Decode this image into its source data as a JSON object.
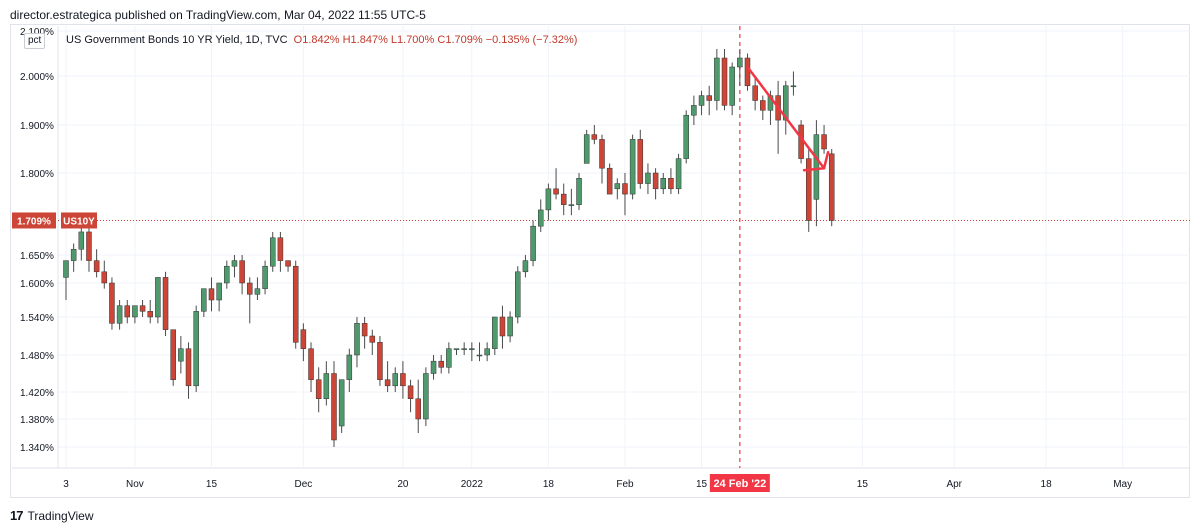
{
  "header": {
    "publish_line": "director.estrategica published on TradingView.com, Mar 04, 2022 11:55 UTC-5"
  },
  "chart_toolbar": {
    "scale_button": "pct"
  },
  "legend": {
    "symbol": "US Government Bonds 10 YR Yield, 1D, TVC",
    "ohlc": "O1.842%  H1.847%  L1.700%  C1.709%  −0.135% (−7.32%)"
  },
  "footer": {
    "brand_mark": "17",
    "brand_name": "TradingView"
  },
  "colors": {
    "up": "#4f9a6d",
    "down": "#cc4536",
    "wick": "#4a4a4a",
    "accent_red": "#f23645",
    "grid": "#f0f3fa",
    "price_line": "#cc4536"
  },
  "chart_data": {
    "type": "candlestick",
    "symbol": "US10Y",
    "last_price_label": "1.709%",
    "ylim": [
      1.3,
      2.1
    ],
    "yticks": [
      "2.100%",
      "2.000%",
      "1.900%",
      "1.800%",
      "1.650%",
      "1.600%",
      "1.540%",
      "1.480%",
      "1.420%",
      "1.380%",
      "1.340%"
    ],
    "ytick_values": [
      2.1,
      2.0,
      1.9,
      1.8,
      1.65,
      1.6,
      1.54,
      1.48,
      1.42,
      1.38,
      1.34
    ],
    "xticks": [
      {
        "label": "3",
        "index": 0
      },
      {
        "label": "Nov",
        "index": 9
      },
      {
        "label": "15",
        "index": 19
      },
      {
        "label": "Dec",
        "index": 31
      },
      {
        "label": "20",
        "index": 44
      },
      {
        "label": "2022",
        "index": 53
      },
      {
        "label": "18",
        "index": 63
      },
      {
        "label": "Feb",
        "index": 73
      },
      {
        "label": "15",
        "index": 83
      },
      {
        "label": "15",
        "index": 104
      },
      {
        "label": "Apr",
        "index": 116
      },
      {
        "label": "18",
        "index": 128
      },
      {
        "label": "May",
        "index": 138
      }
    ],
    "x_domain": [
      0,
      140
    ],
    "highlight_date": {
      "label": "24 Feb '22",
      "index": 88
    },
    "annotation": {
      "type": "arrow",
      "direction": "down-right",
      "from": {
        "index": 89,
        "value": 2.02
      },
      "to": {
        "index": 99,
        "value": 1.81
      }
    },
    "candles": [
      {
        "o": 1.61,
        "h": 1.64,
        "l": 1.57,
        "c": 1.64
      },
      {
        "o": 1.64,
        "h": 1.67,
        "l": 1.62,
        "c": 1.66
      },
      {
        "o": 1.66,
        "h": 1.7,
        "l": 1.64,
        "c": 1.69
      },
      {
        "o": 1.69,
        "h": 1.71,
        "l": 1.62,
        "c": 1.64
      },
      {
        "o": 1.64,
        "h": 1.66,
        "l": 1.61,
        "c": 1.62
      },
      {
        "o": 1.62,
        "h": 1.64,
        "l": 1.59,
        "c": 1.6
      },
      {
        "o": 1.6,
        "h": 1.61,
        "l": 1.52,
        "c": 1.53
      },
      {
        "o": 1.53,
        "h": 1.57,
        "l": 1.52,
        "c": 1.56
      },
      {
        "o": 1.56,
        "h": 1.57,
        "l": 1.53,
        "c": 1.54
      },
      {
        "o": 1.54,
        "h": 1.56,
        "l": 1.53,
        "c": 1.56
      },
      {
        "o": 1.56,
        "h": 1.57,
        "l": 1.54,
        "c": 1.55
      },
      {
        "o": 1.55,
        "h": 1.57,
        "l": 1.53,
        "c": 1.54
      },
      {
        "o": 1.54,
        "h": 1.61,
        "l": 1.53,
        "c": 1.61
      },
      {
        "o": 1.61,
        "h": 1.62,
        "l": 1.51,
        "c": 1.52
      },
      {
        "o": 1.52,
        "h": 1.52,
        "l": 1.43,
        "c": 1.44
      },
      {
        "o": 1.47,
        "h": 1.51,
        "l": 1.45,
        "c": 1.49
      },
      {
        "o": 1.49,
        "h": 1.5,
        "l": 1.41,
        "c": 1.43
      },
      {
        "o": 1.43,
        "h": 1.56,
        "l": 1.42,
        "c": 1.55
      },
      {
        "o": 1.55,
        "h": 1.59,
        "l": 1.54,
        "c": 1.59
      },
      {
        "o": 1.59,
        "h": 1.61,
        "l": 1.55,
        "c": 1.57
      },
      {
        "o": 1.57,
        "h": 1.6,
        "l": 1.55,
        "c": 1.6
      },
      {
        "o": 1.6,
        "h": 1.64,
        "l": 1.59,
        "c": 1.63
      },
      {
        "o": 1.63,
        "h": 1.65,
        "l": 1.61,
        "c": 1.64
      },
      {
        "o": 1.64,
        "h": 1.65,
        "l": 1.58,
        "c": 1.6
      },
      {
        "o": 1.6,
        "h": 1.61,
        "l": 1.53,
        "c": 1.58
      },
      {
        "o": 1.58,
        "h": 1.61,
        "l": 1.57,
        "c": 1.59
      },
      {
        "o": 1.59,
        "h": 1.64,
        "l": 1.58,
        "c": 1.63
      },
      {
        "o": 1.63,
        "h": 1.69,
        "l": 1.62,
        "c": 1.68
      },
      {
        "o": 1.68,
        "h": 1.69,
        "l": 1.62,
        "c": 1.64
      },
      {
        "o": 1.64,
        "h": 1.64,
        "l": 1.62,
        "c": 1.63
      },
      {
        "o": 1.63,
        "h": 1.64,
        "l": 1.49,
        "c": 1.5
      },
      {
        "o": 1.52,
        "h": 1.53,
        "l": 1.47,
        "c": 1.49
      },
      {
        "o": 1.49,
        "h": 1.5,
        "l": 1.42,
        "c": 1.44
      },
      {
        "o": 1.44,
        "h": 1.46,
        "l": 1.39,
        "c": 1.41
      },
      {
        "o": 1.41,
        "h": 1.47,
        "l": 1.4,
        "c": 1.45
      },
      {
        "o": 1.45,
        "h": 1.47,
        "l": 1.34,
        "c": 1.35
      },
      {
        "o": 1.37,
        "h": 1.44,
        "l": 1.36,
        "c": 1.44
      },
      {
        "o": 1.44,
        "h": 1.49,
        "l": 1.42,
        "c": 1.48
      },
      {
        "o": 1.48,
        "h": 1.54,
        "l": 1.46,
        "c": 1.53
      },
      {
        "o": 1.53,
        "h": 1.54,
        "l": 1.49,
        "c": 1.51
      },
      {
        "o": 1.51,
        "h": 1.52,
        "l": 1.48,
        "c": 1.5
      },
      {
        "o": 1.5,
        "h": 1.51,
        "l": 1.43,
        "c": 1.44
      },
      {
        "o": 1.44,
        "h": 1.47,
        "l": 1.42,
        "c": 1.43
      },
      {
        "o": 1.43,
        "h": 1.46,
        "l": 1.42,
        "c": 1.45
      },
      {
        "o": 1.45,
        "h": 1.47,
        "l": 1.41,
        "c": 1.43
      },
      {
        "o": 1.43,
        "h": 1.44,
        "l": 1.39,
        "c": 1.41
      },
      {
        "o": 1.41,
        "h": 1.44,
        "l": 1.36,
        "c": 1.38
      },
      {
        "o": 1.38,
        "h": 1.46,
        "l": 1.37,
        "c": 1.45
      },
      {
        "o": 1.45,
        "h": 1.48,
        "l": 1.44,
        "c": 1.47
      },
      {
        "o": 1.47,
        "h": 1.48,
        "l": 1.45,
        "c": 1.46
      },
      {
        "o": 1.46,
        "h": 1.5,
        "l": 1.45,
        "c": 1.49
      },
      {
        "o": 1.49,
        "h": 1.49,
        "l": 1.48,
        "c": 1.49
      },
      {
        "o": 1.49,
        "h": 1.5,
        "l": 1.48,
        "c": 1.49
      },
      {
        "o": 1.49,
        "h": 1.5,
        "l": 1.47,
        "c": 1.49
      },
      {
        "o": 1.48,
        "h": 1.5,
        "l": 1.47,
        "c": 1.48
      },
      {
        "o": 1.48,
        "h": 1.5,
        "l": 1.47,
        "c": 1.49
      },
      {
        "o": 1.49,
        "h": 1.54,
        "l": 1.48,
        "c": 1.54
      },
      {
        "o": 1.54,
        "h": 1.56,
        "l": 1.49,
        "c": 1.51
      },
      {
        "o": 1.51,
        "h": 1.55,
        "l": 1.5,
        "c": 1.54
      },
      {
        "o": 1.54,
        "h": 1.63,
        "l": 1.53,
        "c": 1.62
      },
      {
        "o": 1.62,
        "h": 1.65,
        "l": 1.61,
        "c": 1.64
      },
      {
        "o": 1.64,
        "h": 1.71,
        "l": 1.63,
        "c": 1.7
      },
      {
        "o": 1.7,
        "h": 1.75,
        "l": 1.69,
        "c": 1.73
      },
      {
        "o": 1.73,
        "h": 1.78,
        "l": 1.71,
        "c": 1.77
      },
      {
        "o": 1.77,
        "h": 1.81,
        "l": 1.75,
        "c": 1.76
      },
      {
        "o": 1.76,
        "h": 1.78,
        "l": 1.72,
        "c": 1.74
      },
      {
        "o": 1.74,
        "h": 1.77,
        "l": 1.72,
        "c": 1.74
      },
      {
        "o": 1.74,
        "h": 1.8,
        "l": 1.73,
        "c": 1.79
      },
      {
        "o": 1.82,
        "h": 1.89,
        "l": 1.82,
        "c": 1.88
      },
      {
        "o": 1.88,
        "h": 1.9,
        "l": 1.86,
        "c": 1.87
      },
      {
        "o": 1.87,
        "h": 1.88,
        "l": 1.78,
        "c": 1.81
      },
      {
        "o": 1.81,
        "h": 1.82,
        "l": 1.76,
        "c": 1.76
      },
      {
        "o": 1.77,
        "h": 1.79,
        "l": 1.75,
        "c": 1.78
      },
      {
        "o": 1.78,
        "h": 1.8,
        "l": 1.72,
        "c": 1.76
      },
      {
        "o": 1.76,
        "h": 1.88,
        "l": 1.75,
        "c": 1.87
      },
      {
        "o": 1.87,
        "h": 1.89,
        "l": 1.77,
        "c": 1.78
      },
      {
        "o": 1.78,
        "h": 1.82,
        "l": 1.76,
        "c": 1.8
      },
      {
        "o": 1.8,
        "h": 1.81,
        "l": 1.75,
        "c": 1.77
      },
      {
        "o": 1.77,
        "h": 1.8,
        "l": 1.76,
        "c": 1.79
      },
      {
        "o": 1.79,
        "h": 1.81,
        "l": 1.76,
        "c": 1.77
      },
      {
        "o": 1.77,
        "h": 1.84,
        "l": 1.76,
        "c": 1.83
      },
      {
        "o": 1.83,
        "h": 1.93,
        "l": 1.82,
        "c": 1.92
      },
      {
        "o": 1.92,
        "h": 1.96,
        "l": 1.9,
        "c": 1.94
      },
      {
        "o": 1.94,
        "h": 1.97,
        "l": 1.92,
        "c": 1.96
      },
      {
        "o": 1.96,
        "h": 1.98,
        "l": 1.92,
        "c": 1.95
      },
      {
        "o": 1.95,
        "h": 2.06,
        "l": 1.93,
        "c": 2.04
      },
      {
        "o": 2.04,
        "h": 2.06,
        "l": 1.93,
        "c": 1.94
      },
      {
        "o": 1.94,
        "h": 2.03,
        "l": 1.92,
        "c": 2.02
      },
      {
        "o": 2.02,
        "h": 2.06,
        "l": 1.98,
        "c": 2.04
      }
    ],
    "candles_after_marker": [
      {
        "o": 2.04,
        "h": 2.05,
        "l": 1.97,
        "c": 1.98
      },
      {
        "o": 1.98,
        "h": 2.0,
        "l": 1.93,
        "c": 1.95
      },
      {
        "o": 1.95,
        "h": 1.96,
        "l": 1.91,
        "c": 1.93
      },
      {
        "o": 1.93,
        "h": 1.97,
        "l": 1.9,
        "c": 1.96
      },
      {
        "o": 1.96,
        "h": 1.99,
        "l": 1.84,
        "c": 1.91
      },
      {
        "o": 1.91,
        "h": 1.99,
        "l": 1.88,
        "c": 1.98
      },
      {
        "o": 1.98,
        "h": 2.01,
        "l": 1.96,
        "c": 1.98
      },
      {
        "o": 1.9,
        "h": 1.91,
        "l": 1.82,
        "c": 1.83
      },
      {
        "o": 1.83,
        "h": 1.85,
        "l": 1.69,
        "c": 1.71
      },
      {
        "o": 1.75,
        "h": 1.91,
        "l": 1.7,
        "c": 1.88
      },
      {
        "o": 1.88,
        "h": 1.9,
        "l": 1.84,
        "c": 1.85
      },
      {
        "o": 1.84,
        "h": 1.85,
        "l": 1.7,
        "c": 1.71
      }
    ]
  }
}
